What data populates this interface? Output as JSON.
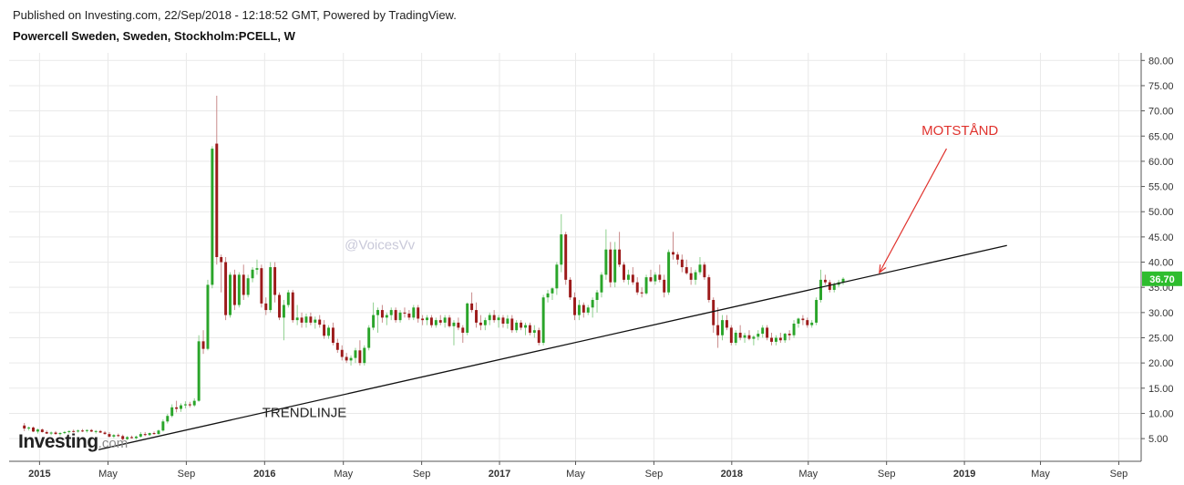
{
  "header": {
    "published": "Published on Investing.com, 22/Sep/2018 - 12:18:52 GMT, Powered by TradingView.",
    "title": "Powercell Sweden, Sweden, Stockholm:PCELL, W"
  },
  "logo": {
    "main": "Investing",
    "domain": ".com"
  },
  "colors": {
    "up": "#2aa52a",
    "down": "#9c1a1a",
    "grid": "#e9e9e9",
    "trendline": "#111111",
    "arrow": "#e0322d",
    "last_price_bg": "#2ebd2e"
  },
  "chart_data": {
    "type": "candlestick",
    "title": "Powercell Sweden, Sweden, Stockholm:PCELL, W",
    "x_unit": "weeks since 2015-01-01 (year/month tick labels)",
    "y_ticks": [
      "5.00",
      "10.00",
      "15.00",
      "20.00",
      "25.00",
      "30.00",
      "35.00",
      "40.00",
      "45.00",
      "50.00",
      "55.00",
      "60.00",
      "65.00",
      "70.00",
      "75.00",
      "80.00"
    ],
    "ylim": [
      0.5,
      81.5
    ],
    "x_ticks": [
      {
        "label": "2015",
        "year": true,
        "t": 1.8
      },
      {
        "label": "May",
        "year": false,
        "t": 17.1
      },
      {
        "label": "Sep",
        "year": false,
        "t": 34.6
      },
      {
        "label": "2016",
        "year": true,
        "t": 52.1
      },
      {
        "label": "May",
        "year": false,
        "t": 69.7
      },
      {
        "label": "Sep",
        "year": false,
        "t": 87.2
      },
      {
        "label": "2017",
        "year": true,
        "t": 104.6
      },
      {
        "label": "May",
        "year": false,
        "t": 121.6
      },
      {
        "label": "Sep",
        "year": false,
        "t": 139.1
      },
      {
        "label": "2018",
        "year": true,
        "t": 156.5
      },
      {
        "label": "May",
        "year": false,
        "t": 173.6
      },
      {
        "label": "Sep",
        "year": false,
        "t": 191.1
      },
      {
        "label": "2019",
        "year": true,
        "t": 208.5
      },
      {
        "label": "May",
        "year": false,
        "t": 225.5
      },
      {
        "label": "Sep",
        "year": false,
        "t": 243.0
      }
    ],
    "xlim": [
      -5,
      248
    ],
    "last_price": "36.70",
    "last_value": 36.7,
    "start_t": -1.6,
    "ohlc": [
      [
        7.6,
        8.1,
        6.5,
        7.0
      ],
      [
        7.0,
        7.4,
        6.6,
        7.2
      ],
      [
        7.2,
        7.4,
        6.3,
        6.4
      ],
      [
        6.4,
        7.0,
        6.0,
        6.8
      ],
      [
        6.8,
        7.0,
        6.2,
        6.3
      ],
      [
        6.3,
        6.6,
        5.9,
        6.0
      ],
      [
        6.0,
        6.4,
        5.7,
        6.2
      ],
      [
        6.2,
        6.5,
        5.8,
        5.9
      ],
      [
        5.9,
        6.3,
        5.6,
        6.1
      ],
      [
        6.1,
        6.5,
        5.9,
        6.3
      ],
      [
        6.3,
        6.6,
        6.0,
        6.5
      ],
      [
        6.5,
        6.8,
        6.2,
        6.4
      ],
      [
        6.4,
        6.8,
        6.2,
        6.6
      ],
      [
        6.6,
        6.9,
        6.3,
        6.5
      ],
      [
        6.5,
        6.8,
        6.2,
        6.7
      ],
      [
        6.7,
        6.9,
        6.3,
        6.4
      ],
      [
        6.4,
        6.7,
        6.0,
        6.5
      ],
      [
        6.5,
        6.7,
        6.1,
        6.2
      ],
      [
        6.2,
        6.5,
        5.8,
        5.9
      ],
      [
        5.9,
        6.3,
        5.2,
        5.4
      ],
      [
        5.4,
        5.9,
        5.1,
        5.7
      ],
      [
        5.7,
        6.0,
        5.3,
        5.5
      ],
      [
        5.5,
        5.8,
        4.6,
        4.9
      ],
      [
        4.9,
        5.5,
        4.7,
        5.3
      ],
      [
        5.3,
        5.6,
        5.0,
        5.1
      ],
      [
        5.1,
        5.6,
        4.8,
        5.4
      ],
      [
        5.4,
        6.3,
        5.2,
        5.9
      ],
      [
        5.9,
        6.3,
        5.5,
        5.7
      ],
      [
        5.7,
        6.2,
        5.5,
        6.1
      ],
      [
        6.1,
        6.4,
        5.8,
        5.9
      ],
      [
        5.9,
        6.8,
        5.8,
        6.6
      ],
      [
        6.6,
        8.8,
        6.4,
        8.4
      ],
      [
        8.4,
        9.9,
        8.0,
        9.5
      ],
      [
        9.5,
        11.8,
        9.2,
        11.2
      ],
      [
        11.2,
        12.5,
        10.2,
        10.9
      ],
      [
        10.9,
        12.0,
        10.3,
        11.6
      ],
      [
        11.6,
        12.4,
        11.0,
        11.8
      ],
      [
        11.8,
        12.3,
        11.2,
        11.6
      ],
      [
        11.6,
        13.0,
        11.3,
        12.5
      ],
      [
        12.5,
        25.5,
        12.3,
        24.3
      ],
      [
        24.3,
        26.5,
        21.8,
        22.8
      ],
      [
        22.8,
        36.5,
        22.5,
        35.5
      ],
      [
        35.5,
        63.0,
        34.8,
        62.5
      ],
      [
        63.5,
        73.0,
        39.5,
        41.0
      ],
      [
        41.0,
        41.5,
        34.0,
        40.0
      ],
      [
        40.0,
        41.0,
        28.5,
        29.5
      ],
      [
        29.5,
        38.0,
        29.0,
        37.5
      ],
      [
        37.5,
        38.5,
        30.5,
        31.5
      ],
      [
        31.5,
        38.0,
        31.0,
        37.5
      ],
      [
        37.5,
        39.5,
        32.5,
        33.5
      ],
      [
        33.5,
        37.5,
        33.0,
        36.8
      ],
      [
        36.8,
        39.0,
        36.0,
        38.5
      ],
      [
        38.5,
        40.5,
        37.5,
        38.8
      ],
      [
        38.8,
        39.5,
        31.0,
        31.8
      ],
      [
        31.8,
        33.0,
        29.5,
        30.5
      ],
      [
        30.5,
        40.0,
        30.0,
        39.0
      ],
      [
        39.0,
        40.0,
        32.0,
        33.5
      ],
      [
        33.5,
        34.0,
        28.5,
        29.0
      ],
      [
        29.0,
        32.5,
        24.5,
        31.5
      ],
      [
        31.5,
        34.5,
        31.0,
        34.0
      ],
      [
        34.0,
        34.5,
        28.0,
        28.5
      ],
      [
        28.5,
        31.5,
        27.5,
        29.0
      ],
      [
        29.0,
        30.0,
        27.0,
        28.0
      ],
      [
        28.0,
        29.8,
        27.0,
        29.2
      ],
      [
        29.2,
        30.0,
        27.5,
        28.0
      ],
      [
        28.0,
        29.2,
        26.8,
        28.6
      ],
      [
        28.6,
        29.5,
        27.0,
        27.6
      ],
      [
        27.6,
        28.5,
        24.8,
        25.4
      ],
      [
        25.4,
        27.5,
        24.8,
        27.0
      ],
      [
        27.0,
        28.0,
        23.5,
        24.0
      ],
      [
        24.0,
        24.8,
        22.0,
        22.6
      ],
      [
        22.6,
        23.5,
        20.5,
        21.2
      ],
      [
        21.2,
        22.0,
        20.0,
        20.5
      ],
      [
        20.5,
        21.5,
        19.5,
        21.0
      ],
      [
        21.0,
        23.0,
        20.0,
        22.5
      ],
      [
        22.5,
        24.5,
        19.5,
        20.0
      ],
      [
        20.0,
        23.5,
        19.5,
        23.0
      ],
      [
        23.0,
        27.5,
        22.5,
        27.0
      ],
      [
        27.0,
        32.0,
        26.5,
        29.5
      ],
      [
        29.5,
        31.0,
        26.0,
        30.5
      ],
      [
        30.5,
        31.5,
        28.0,
        29.0
      ],
      [
        29.0,
        30.0,
        27.5,
        29.5
      ],
      [
        29.5,
        31.0,
        28.5,
        30.5
      ],
      [
        30.5,
        31.0,
        28.0,
        28.5
      ],
      [
        28.5,
        30.5,
        28.0,
        30.0
      ],
      [
        30.0,
        31.0,
        29.0,
        29.8
      ],
      [
        29.8,
        30.5,
        28.5,
        29.0
      ],
      [
        29.0,
        31.5,
        28.5,
        31.0
      ],
      [
        31.0,
        31.5,
        28.0,
        28.8
      ],
      [
        28.8,
        29.5,
        27.5,
        28.5
      ],
      [
        28.5,
        29.5,
        27.5,
        29.0
      ],
      [
        29.0,
        29.5,
        27.0,
        27.5
      ],
      [
        27.5,
        29.0,
        27.0,
        28.5
      ],
      [
        28.5,
        29.5,
        27.5,
        28.0
      ],
      [
        28.0,
        29.5,
        27.0,
        29.0
      ],
      [
        29.0,
        29.5,
        27.0,
        27.3
      ],
      [
        27.3,
        28.5,
        23.5,
        28.0
      ],
      [
        28.0,
        29.0,
        26.5,
        27.0
      ],
      [
        27.0,
        27.5,
        24.0,
        26.0
      ],
      [
        26.0,
        32.0,
        25.5,
        31.8
      ],
      [
        31.8,
        34.0,
        30.0,
        30.5
      ],
      [
        30.5,
        32.0,
        27.0,
        28.0
      ],
      [
        28.0,
        29.5,
        26.5,
        27.5
      ],
      [
        27.5,
        29.0,
        26.5,
        28.5
      ],
      [
        28.5,
        30.0,
        27.5,
        29.5
      ],
      [
        29.5,
        30.5,
        28.0,
        28.5
      ],
      [
        28.5,
        29.5,
        27.0,
        29.0
      ],
      [
        29.0,
        29.5,
        27.0,
        27.8
      ],
      [
        27.8,
        29.5,
        26.8,
        28.8
      ],
      [
        28.8,
        29.5,
        26.0,
        26.5
      ],
      [
        26.5,
        28.5,
        26.0,
        28.0
      ],
      [
        28.0,
        28.5,
        26.5,
        27.0
      ],
      [
        27.0,
        28.0,
        25.5,
        27.5
      ],
      [
        27.5,
        28.0,
        25.5,
        26.0
      ],
      [
        26.0,
        27.5,
        25.0,
        26.5
      ],
      [
        26.5,
        27.0,
        23.5,
        24.0
      ],
      [
        24.0,
        33.5,
        23.5,
        33.0
      ],
      [
        33.0,
        34.5,
        32.0,
        33.8
      ],
      [
        33.8,
        35.0,
        32.5,
        34.8
      ],
      [
        34.8,
        40.0,
        33.5,
        39.5
      ],
      [
        39.5,
        49.5,
        38.0,
        45.5
      ],
      [
        45.5,
        46.0,
        35.5,
        36.5
      ],
      [
        36.5,
        37.0,
        32.5,
        33.0
      ],
      [
        33.0,
        34.0,
        28.5,
        29.5
      ],
      [
        29.5,
        32.5,
        28.5,
        31.5
      ],
      [
        31.5,
        32.0,
        29.0,
        30.0
      ],
      [
        30.0,
        31.5,
        29.5,
        31.0
      ],
      [
        31.0,
        33.0,
        29.0,
        32.5
      ],
      [
        32.5,
        34.5,
        30.0,
        34.0
      ],
      [
        34.0,
        38.0,
        33.0,
        37.5
      ],
      [
        37.5,
        46.5,
        36.5,
        42.5
      ],
      [
        42.5,
        44.0,
        35.0,
        36.0
      ],
      [
        36.0,
        44.0,
        35.0,
        42.5
      ],
      [
        42.5,
        46.0,
        39.0,
        39.5
      ],
      [
        39.5,
        40.0,
        36.0,
        36.5
      ],
      [
        36.5,
        38.5,
        35.5,
        37.5
      ],
      [
        37.5,
        39.0,
        35.5,
        36.0
      ],
      [
        36.0,
        37.0,
        33.5,
        34.0
      ],
      [
        34.0,
        35.0,
        33.0,
        33.8
      ],
      [
        33.8,
        37.5,
        33.5,
        37.0
      ],
      [
        37.0,
        38.5,
        36.0,
        36.2
      ],
      [
        36.2,
        38.0,
        35.5,
        37.5
      ],
      [
        37.5,
        39.5,
        36.0,
        36.5
      ],
      [
        36.5,
        37.5,
        33.0,
        34.0
      ],
      [
        34.0,
        42.5,
        33.5,
        42.0
      ],
      [
        42.0,
        46.0,
        40.5,
        41.5
      ],
      [
        41.5,
        42.0,
        39.5,
        40.5
      ],
      [
        40.5,
        41.5,
        38.0,
        39.0
      ],
      [
        39.0,
        40.5,
        37.5,
        37.8
      ],
      [
        37.8,
        39.0,
        35.5,
        36.5
      ],
      [
        36.5,
        38.5,
        35.5,
        38.0
      ],
      [
        38.0,
        41.0,
        37.5,
        39.5
      ],
      [
        39.5,
        40.0,
        36.5,
        37.0
      ],
      [
        37.0,
        37.5,
        32.0,
        32.5
      ],
      [
        32.5,
        33.0,
        26.0,
        27.5
      ],
      [
        27.5,
        31.0,
        23.0,
        25.5
      ],
      [
        25.5,
        29.5,
        24.5,
        28.5
      ],
      [
        28.5,
        29.5,
        26.5,
        27.0
      ],
      [
        27.0,
        27.5,
        23.5,
        24.0
      ],
      [
        24.0,
        26.5,
        23.5,
        26.0
      ],
      [
        26.0,
        27.5,
        24.5,
        25.0
      ],
      [
        25.0,
        26.0,
        24.0,
        25.5
      ],
      [
        25.5,
        26.5,
        24.5,
        24.8
      ],
      [
        24.8,
        25.5,
        23.5,
        25.2
      ],
      [
        25.2,
        26.5,
        24.5,
        25.8
      ],
      [
        25.8,
        27.5,
        25.0,
        27.0
      ],
      [
        27.0,
        27.5,
        24.5,
        25.0
      ],
      [
        25.0,
        26.0,
        23.5,
        24.2
      ],
      [
        24.2,
        25.5,
        23.5,
        25.0
      ],
      [
        25.0,
        26.0,
        24.0,
        24.5
      ],
      [
        24.5,
        26.0,
        24.0,
        25.8
      ],
      [
        25.8,
        26.5,
        24.5,
        25.5
      ],
      [
        25.5,
        28.5,
        25.0,
        27.8
      ],
      [
        27.8,
        29.0,
        27.0,
        28.8
      ],
      [
        28.8,
        29.5,
        27.5,
        28.5
      ],
      [
        28.5,
        29.0,
        27.0,
        27.5
      ],
      [
        27.5,
        28.5,
        27.0,
        28.0
      ],
      [
        28.0,
        33.0,
        27.5,
        32.5
      ],
      [
        32.5,
        38.5,
        32.0,
        36.5
      ],
      [
        36.5,
        37.5,
        35.5,
        36.0
      ],
      [
        36.0,
        36.5,
        34.0,
        34.5
      ],
      [
        34.5,
        36.0,
        34.0,
        35.5
      ],
      [
        35.5,
        36.5,
        35.0,
        36.0
      ],
      [
        36.0,
        37.0,
        35.5,
        36.7
      ]
    ],
    "trendline": {
      "from": [
        15.0,
        2.8
      ],
      "to": [
        218.0,
        43.3
      ]
    },
    "annotations": [
      {
        "text": "MOTSTÅND",
        "t": 207.5,
        "y": 65.2
      },
      {
        "text": "TRENDLINJE",
        "t": 61.0,
        "y": 9.3
      },
      {
        "text": "@VoicesVv",
        "t": 70.0,
        "y": 42.5
      }
    ],
    "arrow": {
      "from": [
        204.5,
        62.5
      ],
      "to": [
        189.5,
        37.9
      ]
    }
  }
}
